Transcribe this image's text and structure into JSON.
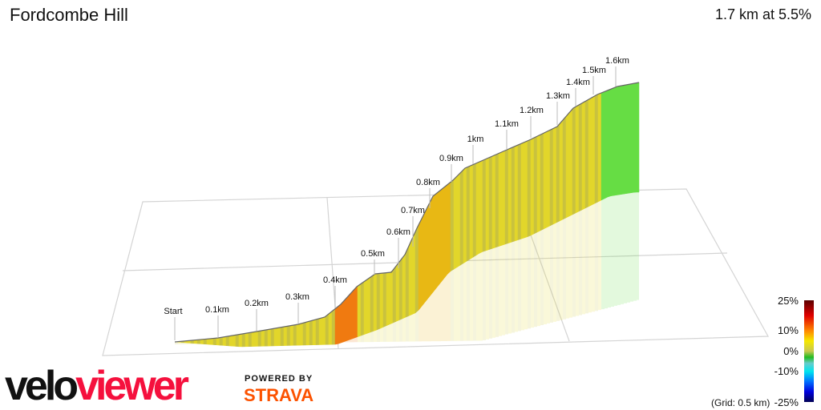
{
  "header": {
    "title": "Fordcombe Hill",
    "summary": "1.7 km at 5.5%"
  },
  "branding": {
    "logo_part1": "velo",
    "logo_part2": "viewer",
    "powered_by": "POWERED BY",
    "strava": "STRAVA"
  },
  "chart_data": {
    "type": "area",
    "title": "Fordcombe Hill",
    "distance_km": 1.7,
    "average_gradient_pct": 5.5,
    "distance_labels": [
      "Start",
      "0.1km",
      "0.2km",
      "0.3km",
      "0.4km",
      "0.5km",
      "0.6km",
      "0.7km",
      "0.8km",
      "0.9km",
      "1km",
      "1.1km",
      "1.2km",
      "1.3km",
      "1.4km",
      "1.5km",
      "1.6km"
    ],
    "gradient_scale": {
      "ticks": [
        "25%",
        "10%",
        "0%",
        "-10%"
      ],
      "min_label": "-25%",
      "grid_note": "(Grid: 0.5 km)"
    },
    "colors": {
      "yellow": "#e2d62a",
      "olive": "#c9c23e",
      "orange": "#f07a10",
      "green": "#66dd44",
      "accent_red": "#f5103d"
    }
  }
}
